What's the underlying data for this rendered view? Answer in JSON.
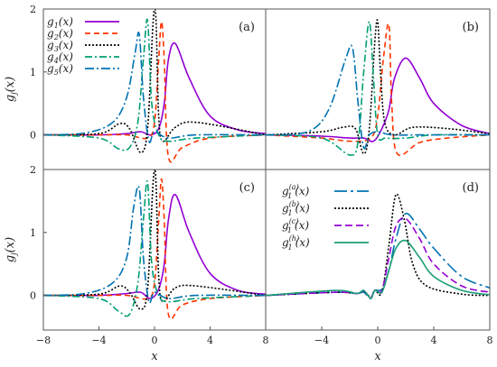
{
  "chart_data": [
    {
      "panel": "(a)",
      "type": "line",
      "xlim": [
        -8,
        8
      ],
      "ylim": [
        -0.55,
        2
      ],
      "xticks": [],
      "yticks": [
        "0",
        "1",
        "2"
      ],
      "ylabel": "g_j(x)",
      "xlabel": "",
      "legend": "top-left",
      "series": [
        {
          "name": "g_1(x)",
          "color": "#9400d3",
          "dash": "solid",
          "x": [
            -8,
            -4,
            -2,
            -1,
            -0.3,
            0.3,
            0.7,
            1.0,
            1.5,
            2.5,
            4,
            6,
            8
          ],
          "y": [
            0,
            0,
            0.02,
            0.05,
            0,
            0.1,
            0.5,
            1.2,
            1.45,
            0.9,
            0.3,
            0.08,
            0.02
          ]
        },
        {
          "name": "g_2(x)",
          "color": "#ff3300",
          "dash": "6,4",
          "x": [
            -8,
            -4,
            -2,
            -0.5,
            0,
            0.3,
            0.5,
            0.7,
            1.0,
            2,
            4,
            8
          ],
          "y": [
            0,
            0,
            0,
            -0.05,
            0.2,
            1.2,
            1.8,
            1.2,
            -0.35,
            -0.2,
            -0.05,
            0
          ]
        },
        {
          "name": "g_3(x)",
          "color": "#000000",
          "dash": "2,2",
          "x": [
            -8,
            -4,
            -2.5,
            -1.8,
            -1,
            -0.5,
            -0.1,
            0.1,
            0.3,
            0.6,
            1.5,
            3,
            8
          ],
          "y": [
            0,
            0.02,
            0.18,
            0.1,
            -0.28,
            0.1,
            1.8,
            1.85,
            0.3,
            -0.1,
            0.12,
            0.2,
            0
          ]
        },
        {
          "name": "g_4(x)",
          "color": "#009e73",
          "dash": "8,3,2,3",
          "x": [
            -8,
            -4,
            -2.6,
            -1.8,
            -1.2,
            -0.8,
            -0.5,
            -0.2,
            0.3,
            1,
            3,
            8
          ],
          "y": [
            0,
            -0.05,
            -0.22,
            -0.2,
            0.2,
            1.2,
            1.82,
            0.5,
            0,
            -0.1,
            -0.05,
            0
          ]
        },
        {
          "name": "g_5(x)",
          "color": "#0072b2",
          "dash": "10,3,2,3",
          "x": [
            -8,
            -5,
            -3,
            -2,
            -1.4,
            -1.1,
            -0.8,
            -0.4,
            0,
            1,
            3,
            8
          ],
          "y": [
            0,
            0.03,
            0.2,
            0.6,
            1.3,
            1.6,
            0.6,
            -0.1,
            0.05,
            -0.05,
            0,
            0
          ]
        }
      ]
    },
    {
      "panel": "(b)",
      "type": "line",
      "xlim": [
        -8,
        8
      ],
      "ylim": [
        -0.55,
        2
      ],
      "xticks": [],
      "yticks": [],
      "legend": "none",
      "series": [
        {
          "name": "",
          "color": "#9400d3",
          "dash": "solid",
          "x": [
            -8,
            -4,
            -2,
            -1,
            -0.3,
            0.3,
            0.8,
            1.2,
            2.0,
            3.0,
            4,
            6,
            8
          ],
          "y": [
            0,
            -0.02,
            -0.05,
            -0.05,
            -0.1,
            0.1,
            0.4,
            0.9,
            1.22,
            0.9,
            0.5,
            0.15,
            0.02
          ]
        },
        {
          "name": "",
          "color": "#ff3300",
          "dash": "6,4",
          "x": [
            -8,
            -4,
            -2,
            -0.5,
            0,
            0.4,
            0.8,
            1.0,
            1.4,
            3,
            5,
            8
          ],
          "y": [
            0,
            -0.05,
            -0.1,
            -0.05,
            0.3,
            1.2,
            1.75,
            0.5,
            -0.3,
            -0.12,
            -0.05,
            0
          ]
        },
        {
          "name": "",
          "color": "#000000",
          "dash": "2,2",
          "x": [
            -8,
            -4,
            -2.5,
            -1.6,
            -1,
            -0.6,
            -0.2,
            0,
            0.2,
            0.5,
            1.2,
            2.5,
            5,
            8
          ],
          "y": [
            0,
            0.05,
            0.12,
            0.1,
            -0.3,
            0.1,
            1.5,
            1.8,
            1.0,
            0.2,
            0,
            0.12,
            0.1,
            0.02
          ]
        },
        {
          "name": "",
          "color": "#009e73",
          "dash": "8,3,2,3",
          "x": [
            -8,
            -4,
            -2,
            -1.4,
            -1,
            -0.6,
            -0.3,
            0,
            0.6,
            2,
            4,
            8
          ],
          "y": [
            0,
            -0.05,
            -0.32,
            -0.1,
            1.0,
            1.8,
            0.9,
            0,
            -0.05,
            -0.05,
            0,
            0
          ]
        },
        {
          "name": "",
          "color": "#0072b2",
          "dash": "10,3,2,3",
          "x": [
            -8,
            -5,
            -3.5,
            -2.3,
            -1.8,
            -1.4,
            -1.0,
            -0.6,
            0,
            1,
            3,
            8
          ],
          "y": [
            0,
            0.05,
            0.4,
            1.2,
            1.38,
            0.5,
            -0.2,
            0,
            0.05,
            0,
            0,
            0
          ]
        }
      ]
    },
    {
      "panel": "(c)",
      "type": "line",
      "xlim": [
        -8,
        8
      ],
      "ylim": [
        -0.55,
        2
      ],
      "xticks": [
        "−8",
        "−4",
        "0",
        "4",
        "8"
      ],
      "yticks": [
        "0",
        "1",
        "2"
      ],
      "ylabel": "g_j(x)",
      "xlabel": "x",
      "legend": "none",
      "series": [
        {
          "name": "",
          "color": "#9400d3",
          "dash": "solid",
          "x": [
            -8,
            -4,
            -2,
            -1,
            -0.3,
            0.3,
            0.7,
            1.0,
            1.5,
            2.5,
            4,
            6,
            8
          ],
          "y": [
            0,
            0,
            0.03,
            0.05,
            -0.05,
            0.1,
            0.5,
            1.2,
            1.6,
            1.0,
            0.35,
            0.08,
            0.02
          ]
        },
        {
          "name": "",
          "color": "#ff3300",
          "dash": "6,4",
          "x": [
            -8,
            -4,
            -2,
            -0.5,
            0,
            0.3,
            0.5,
            0.7,
            1.0,
            2,
            4,
            8
          ],
          "y": [
            0,
            0,
            0,
            -0.05,
            0.2,
            1.2,
            1.85,
            1.2,
            -0.3,
            -0.15,
            -0.05,
            0
          ]
        },
        {
          "name": "",
          "color": "#000000",
          "dash": "2,2",
          "x": [
            -8,
            -4,
            -2.5,
            -1.8,
            -1,
            -0.5,
            -0.1,
            0.1,
            0.3,
            0.6,
            1.5,
            3,
            8
          ],
          "y": [
            0,
            0.02,
            0.15,
            0.05,
            -0.22,
            0.1,
            1.8,
            1.82,
            0.3,
            -0.1,
            0.12,
            0.15,
            0
          ]
        },
        {
          "name": "",
          "color": "#009e73",
          "dash": "8,3,2,3",
          "x": [
            -8,
            -4,
            -2.6,
            -1.8,
            -1.2,
            -0.8,
            -0.5,
            -0.2,
            0.3,
            1,
            3,
            8
          ],
          "y": [
            0,
            -0.05,
            -0.25,
            -0.3,
            0.2,
            1.2,
            1.8,
            0.5,
            0,
            -0.1,
            -0.05,
            0
          ]
        },
        {
          "name": "",
          "color": "#0072b2",
          "dash": "10,3,2,3",
          "x": [
            -8,
            -5,
            -3,
            -2,
            -1.5,
            -1.1,
            -0.8,
            -0.4,
            0,
            1,
            3,
            8
          ],
          "y": [
            0,
            0.03,
            0.2,
            0.6,
            1.4,
            1.7,
            0.6,
            -0.1,
            0.05,
            -0.05,
            0,
            0
          ]
        }
      ]
    },
    {
      "panel": "(d)",
      "type": "line",
      "xlim": [
        -8,
        8
      ],
      "ylim": [
        -0.55,
        2
      ],
      "xticks": [
        "−4",
        "0",
        "4",
        "8"
      ],
      "yticks": [],
      "xlabel": "x",
      "legend": "top-right",
      "series": [
        {
          "name": "g_1^{(a)}(x)",
          "color": "#0072b2",
          "dash": "14,4,3,4",
          "x": [
            -8,
            -3,
            -1.5,
            -1,
            -0.5,
            -0.2,
            0.3,
            0.8,
            1.3,
            2.0,
            3.0,
            4,
            6,
            8
          ],
          "y": [
            0,
            0.05,
            0.03,
            0.05,
            -0.05,
            0.08,
            0.1,
            0.4,
            0.9,
            1.3,
            1.05,
            0.75,
            0.3,
            0.12
          ]
        },
        {
          "name": "g_1^{(b)}(x)",
          "color": "#000000",
          "dash": "2,2",
          "x": [
            -8,
            -3,
            -1.5,
            -1,
            -0.5,
            -0.2,
            0.3,
            0.8,
            1.3,
            1.9,
            2.5,
            3.5,
            6,
            8
          ],
          "y": [
            0,
            0.05,
            0.03,
            0.07,
            -0.03,
            0.08,
            0.05,
            0.8,
            1.6,
            1.2,
            0.5,
            0.15,
            0.02,
            0
          ]
        },
        {
          "name": "g_1^{(c)}(x)",
          "color": "#9400d3",
          "dash": "8,4",
          "x": [
            -8,
            -3,
            -1.5,
            -1,
            -0.5,
            -0.2,
            0.3,
            0.8,
            1.3,
            2.0,
            3.0,
            4,
            6,
            8
          ],
          "y": [
            0,
            0.05,
            0.03,
            0.07,
            -0.03,
            0.08,
            0.08,
            0.6,
            1.1,
            1.22,
            0.9,
            0.5,
            0.15,
            0.05
          ]
        },
        {
          "name": "g_1^{(h)}(x)",
          "color": "#1a9e77",
          "dash": "solid",
          "x": [
            -8,
            -3,
            -1.5,
            -1,
            -0.5,
            -0.2,
            0.3,
            0.8,
            1.3,
            2.0,
            3.0,
            4,
            6,
            8
          ],
          "y": [
            0,
            0.08,
            0.03,
            0.08,
            -0.05,
            0.08,
            0.05,
            0.4,
            0.75,
            0.87,
            0.6,
            0.3,
            0.08,
            0.01
          ]
        }
      ]
    }
  ]
}
